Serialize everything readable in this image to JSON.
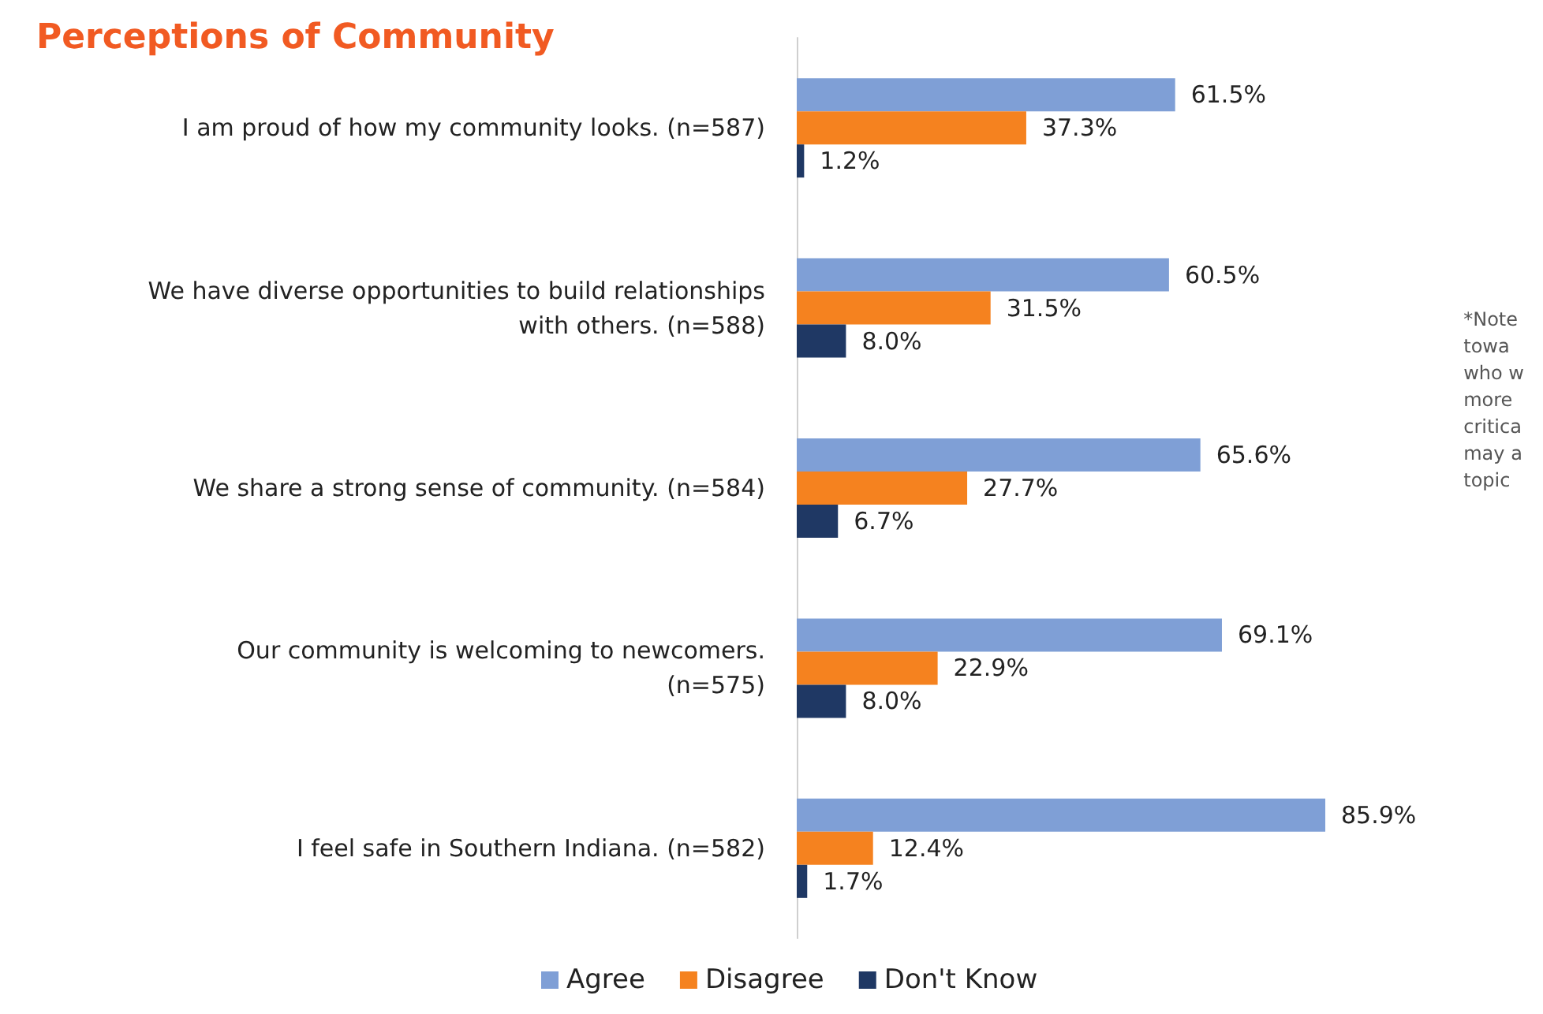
{
  "chart_data": {
    "type": "bar",
    "orientation": "horizontal",
    "title": "Perceptions of Community",
    "categories": [
      "I am proud of how my community looks. (n=587)",
      "We have diverse opportunities to build relationships\nwith others. (n=588)",
      "We share a strong sense of community. (n=584)",
      "Our community is welcoming to newcomers.\n(n=575)",
      "I feel safe in Southern Indiana. (n=582)"
    ],
    "series": [
      {
        "name": "Agree",
        "color": "#7f9fd6",
        "values": [
          61.5,
          60.5,
          65.6,
          69.1,
          85.9
        ],
        "value_labels": [
          "61.5%",
          "60.5%",
          "65.6%",
          "69.1%",
          "85.9%"
        ]
      },
      {
        "name": "Disagree",
        "color": "#f5821f",
        "values": [
          37.3,
          31.5,
          27.7,
          22.9,
          12.4
        ],
        "value_labels": [
          "37.3%",
          "31.5%",
          "27.7%",
          "22.9%",
          "12.4%"
        ]
      },
      {
        "name": "Don't Know",
        "color": "#1f3864",
        "values": [
          1.2,
          8.0,
          6.7,
          8.0,
          1.7
        ],
        "value_labels": [
          "1.2%",
          "8.0%",
          "6.7%",
          "8.0%",
          "1.7%"
        ]
      }
    ],
    "tick_labels": "y",
    "legend": "bottom",
    "annotations": [
      "*Note\ntowa\nwho w\nmore\ncritica\nmay a\ntopic"
    ]
  }
}
